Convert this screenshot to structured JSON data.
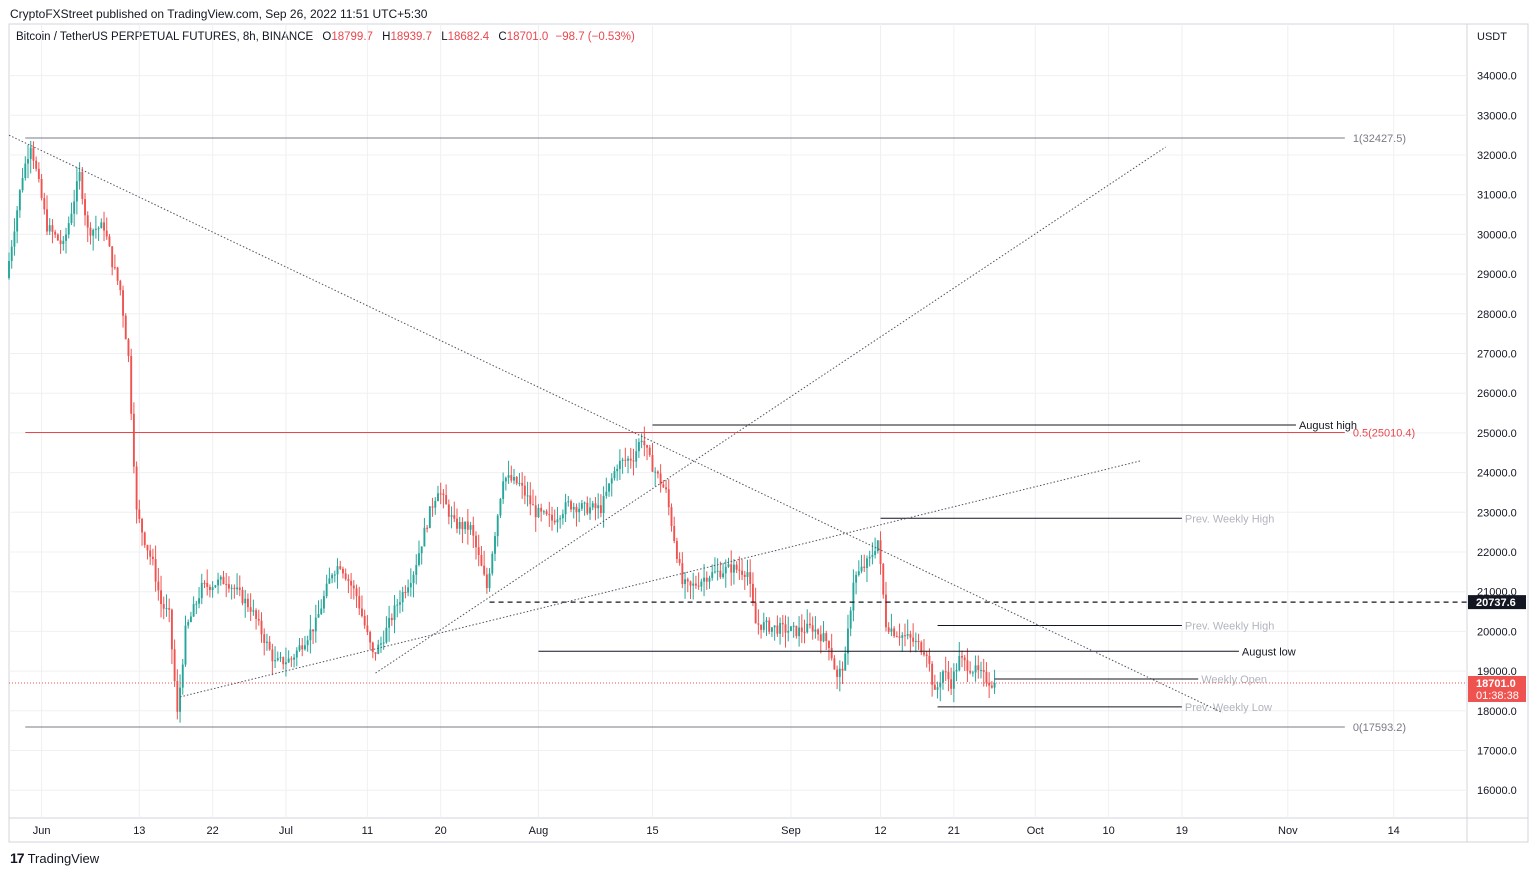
{
  "publisher_line": "CryptoFXStreet published on TradingView.com, Sep 26, 2022 11:51 UTC+5:30",
  "legend": {
    "symbol": "Bitcoin / TetherUS PERPETUAL FUTURES, 8h, BINANCE",
    "open_label": "O",
    "open": "18799.7",
    "high_label": "H",
    "high": "18939.7",
    "low_label": "L",
    "low": "18682.4",
    "close_label": "C",
    "close": "18701.0",
    "change": "−98.7 (−0.53%)"
  },
  "footer": {
    "brand": "TradingView",
    "logo": "17"
  },
  "colors": {
    "up": "#26a69a",
    "down": "#ef5350",
    "fib": "#e8474e",
    "grid": "#eef0f3",
    "axis_border": "#d1d4dc"
  },
  "chart_data": {
    "type": "candlestick",
    "currency": "USDT",
    "interval": "8h",
    "y_ticks": [
      16000,
      17000,
      18000,
      19000,
      20000,
      21000,
      22000,
      23000,
      24000,
      25000,
      26000,
      27000,
      28000,
      29000,
      30000,
      31000,
      32000,
      33000,
      34000
    ],
    "y_tick_labels": [
      "16000.0",
      "17000.0",
      "18000.0",
      "19000.0",
      "20000.0",
      "21000.0",
      "22000.0",
      "23000.0",
      "24000.0",
      "25000.0",
      "26000.0",
      "27000.0",
      "28000.0",
      "29000.0",
      "30000.0",
      "31000.0",
      "32000.0",
      "33000.0",
      "34000.0"
    ],
    "ylim": [
      15300,
      35300
    ],
    "x_ticks": [
      {
        "date": "2022-06-01",
        "label": "Jun"
      },
      {
        "date": "2022-06-13",
        "label": "13"
      },
      {
        "date": "2022-06-22",
        "label": "22"
      },
      {
        "date": "2022-07-01",
        "label": "Jul"
      },
      {
        "date": "2022-07-11",
        "label": "11"
      },
      {
        "date": "2022-07-20",
        "label": "20"
      },
      {
        "date": "2022-08-01",
        "label": "Aug"
      },
      {
        "date": "2022-08-15",
        "label": "15"
      },
      {
        "date": "2022-09-01",
        "label": "Sep"
      },
      {
        "date": "2022-09-12",
        "label": "12"
      },
      {
        "date": "2022-09-21",
        "label": "21"
      },
      {
        "date": "2022-10-01",
        "label": "Oct"
      },
      {
        "date": "2022-10-10",
        "label": "10"
      },
      {
        "date": "2022-10-19",
        "label": "19"
      },
      {
        "date": "2022-11-01",
        "label": "Nov"
      },
      {
        "date": "2022-11-14",
        "label": "14"
      }
    ],
    "xlim": [
      "2022-05-28",
      "2022-11-23"
    ],
    "price_path": [
      [
        "2022-05-28",
        28900
      ],
      [
        "2022-05-30",
        31500
      ],
      [
        "2022-05-31",
        32300
      ],
      [
        "2022-06-02",
        30200
      ],
      [
        "2022-06-04",
        29700
      ],
      [
        "2022-06-06",
        31500
      ],
      [
        "2022-06-07",
        30100
      ],
      [
        "2022-06-09",
        30200
      ],
      [
        "2022-06-10",
        29300
      ],
      [
        "2022-06-11",
        28600
      ],
      [
        "2022-06-12",
        26900
      ],
      [
        "2022-06-13",
        23000
      ],
      [
        "2022-06-14",
        22300
      ],
      [
        "2022-06-15",
        21700
      ],
      [
        "2022-06-16",
        20700
      ],
      [
        "2022-06-17",
        20400
      ],
      [
        "2022-06-18",
        17900
      ],
      [
        "2022-06-19",
        20000
      ],
      [
        "2022-06-21",
        21100
      ],
      [
        "2022-06-24",
        21300
      ],
      [
        "2022-06-27",
        20600
      ],
      [
        "2022-06-30",
        19200
      ],
      [
        "2022-07-02",
        19300
      ],
      [
        "2022-07-05",
        20200
      ],
      [
        "2022-07-07",
        21500
      ],
      [
        "2022-07-08",
        21700
      ],
      [
        "2022-07-10",
        20900
      ],
      [
        "2022-07-12",
        19400
      ],
      [
        "2022-07-13",
        19700
      ],
      [
        "2022-07-15",
        20700
      ],
      [
        "2022-07-17",
        21500
      ],
      [
        "2022-07-19",
        23000
      ],
      [
        "2022-07-20",
        23600
      ],
      [
        "2022-07-22",
        22700
      ],
      [
        "2022-07-24",
        22600
      ],
      [
        "2022-07-26",
        21100
      ],
      [
        "2022-07-27",
        22500
      ],
      [
        "2022-07-28",
        23900
      ],
      [
        "2022-07-30",
        23700
      ],
      [
        "2022-08-01",
        23000
      ],
      [
        "2022-08-03",
        22800
      ],
      [
        "2022-08-05",
        23200
      ],
      [
        "2022-08-07",
        23100
      ],
      [
        "2022-08-09",
        23100
      ],
      [
        "2022-08-11",
        24200
      ],
      [
        "2022-08-13",
        24400
      ],
      [
        "2022-08-14",
        24900
      ],
      [
        "2022-08-15",
        24300
      ],
      [
        "2022-08-17",
        23500
      ],
      [
        "2022-08-19",
        21200
      ],
      [
        "2022-08-20",
        21100
      ],
      [
        "2022-08-22",
        21400
      ],
      [
        "2022-08-25",
        21600
      ],
      [
        "2022-08-27",
        21500
      ],
      [
        "2022-08-28",
        20200
      ],
      [
        "2022-08-30",
        20100
      ],
      [
        "2022-09-02",
        20000
      ],
      [
        "2022-09-04",
        20100
      ],
      [
        "2022-09-06",
        19700
      ],
      [
        "2022-09-07",
        18800
      ],
      [
        "2022-09-08",
        19300
      ],
      [
        "2022-09-09",
        21300
      ],
      [
        "2022-09-11",
        21800
      ],
      [
        "2022-09-12",
        22300
      ],
      [
        "2022-09-13",
        20200
      ],
      [
        "2022-09-14",
        20000
      ],
      [
        "2022-09-16",
        19800
      ],
      [
        "2022-09-18",
        19500
      ],
      [
        "2022-09-19",
        18400
      ],
      [
        "2022-09-20",
        19000
      ],
      [
        "2022-09-21",
        18700
      ],
      [
        "2022-09-22",
        19300
      ],
      [
        "2022-09-24",
        19000
      ],
      [
        "2022-09-26",
        18701
      ]
    ],
    "horizontal_levels": [
      {
        "value": 32427.5,
        "label": "1(32427.5)",
        "from": "2022-05-30",
        "to": "2022-11-08"
      },
      {
        "value": 25010.4,
        "label": "0.5(25010.4)",
        "from": "2022-05-30",
        "to": "2022-11-08"
      },
      {
        "value": 17593.2,
        "label": "0(17593.2)",
        "from": "2022-05-30",
        "to": "2022-11-08"
      },
      {
        "value": 25200,
        "label": "August high",
        "from": "2022-08-15",
        "to": "2022-11-02"
      },
      {
        "value": 22850,
        "label": "Prev. Weekly High",
        "from": "2022-09-12",
        "to": "2022-10-19"
      },
      {
        "value": 20150,
        "label": "Prev. Weekly High",
        "from": "2022-09-19",
        "to": "2022-10-19"
      },
      {
        "value": 19500,
        "label": "August low",
        "from": "2022-08-01",
        "to": "2022-10-26"
      },
      {
        "value": 18800,
        "label": "Weekly Open",
        "from": "2022-09-26",
        "to": "2022-10-21"
      },
      {
        "value": 18100,
        "label": "Prev. Weekly Low",
        "from": "2022-09-19",
        "to": "2022-10-19"
      }
    ],
    "dashed_level": {
      "value": 20737.6,
      "label": "20737.6",
      "from": "2022-07-26"
    },
    "last_price": {
      "value": 18701.0,
      "label": "18701.0",
      "countdown": "01:38:38"
    },
    "trendlines": [
      {
        "from": [
          "2022-05-28",
          32500
        ],
        "to": [
          "2022-10-24",
          17950
        ],
        "style": "dotted"
      },
      {
        "from": [
          "2022-07-12",
          18950
        ],
        "to": [
          "2022-10-17",
          32200
        ],
        "style": "dotted"
      },
      {
        "from": [
          "2022-06-18",
          18350
        ],
        "to": [
          "2022-10-14",
          24300
        ],
        "style": "dotted"
      }
    ]
  }
}
